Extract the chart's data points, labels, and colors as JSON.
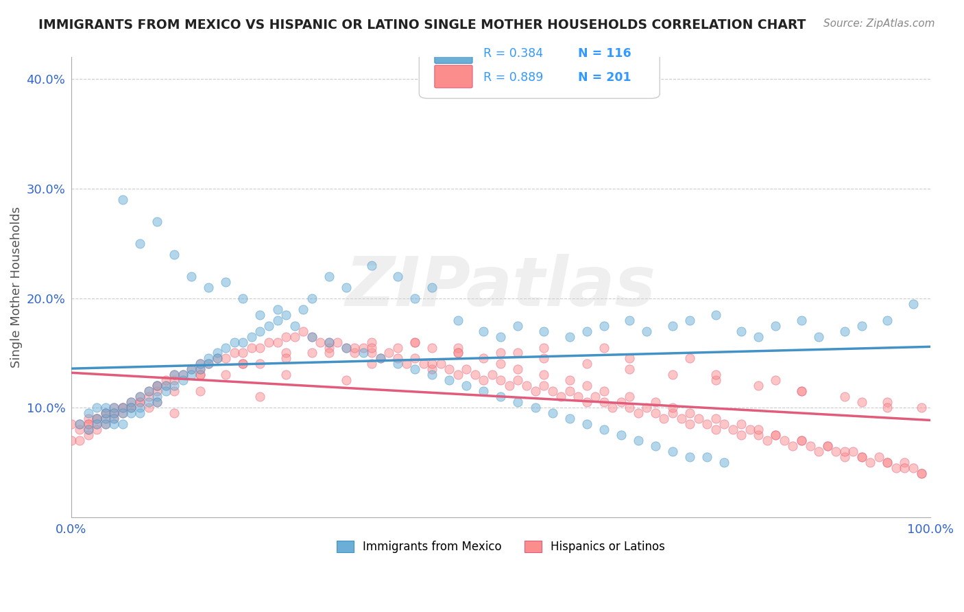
{
  "title": "IMMIGRANTS FROM MEXICO VS HISPANIC OR LATINO SINGLE MOTHER HOUSEHOLDS CORRELATION CHART",
  "source": "Source: ZipAtlas.com",
  "xlabel": "",
  "ylabel": "Single Mother Households",
  "xlim": [
    0.0,
    1.0
  ],
  "ylim": [
    0.0,
    0.42
  ],
  "xtick_labels": [
    "0.0%",
    "100.0%"
  ],
  "ytick_labels": [
    "10.0%",
    "20.0%",
    "30.0%",
    "40.0%"
  ],
  "ytick_values": [
    0.1,
    0.2,
    0.3,
    0.4
  ],
  "blue_R": 0.384,
  "blue_N": 116,
  "pink_R": 0.889,
  "pink_N": 201,
  "blue_color": "#6baed6",
  "pink_color": "#fc8d8d",
  "blue_line_color": "#4292c6",
  "pink_line_color": "#e05c7a",
  "legend_R_color": "#3399ff",
  "watermark": "ZIPatlas",
  "bg_color": "#ffffff",
  "grid_color": "#cccccc",
  "title_color": "#222222",
  "blue_scatter_x": [
    0.01,
    0.02,
    0.02,
    0.03,
    0.03,
    0.03,
    0.04,
    0.04,
    0.04,
    0.04,
    0.05,
    0.05,
    0.05,
    0.05,
    0.06,
    0.06,
    0.06,
    0.07,
    0.07,
    0.07,
    0.08,
    0.08,
    0.08,
    0.09,
    0.09,
    0.1,
    0.1,
    0.1,
    0.11,
    0.11,
    0.12,
    0.12,
    0.13,
    0.13,
    0.14,
    0.14,
    0.15,
    0.15,
    0.16,
    0.16,
    0.17,
    0.17,
    0.18,
    0.19,
    0.2,
    0.21,
    0.22,
    0.23,
    0.24,
    0.25,
    0.27,
    0.28,
    0.3,
    0.32,
    0.35,
    0.38,
    0.4,
    0.42,
    0.45,
    0.48,
    0.5,
    0.52,
    0.55,
    0.58,
    0.6,
    0.62,
    0.65,
    0.67,
    0.7,
    0.72,
    0.75,
    0.78,
    0.8,
    0.82,
    0.85,
    0.87,
    0.9,
    0.92,
    0.95,
    0.98,
    0.06,
    0.08,
    0.1,
    0.12,
    0.14,
    0.16,
    0.18,
    0.2,
    0.22,
    0.24,
    0.26,
    0.28,
    0.3,
    0.32,
    0.34,
    0.36,
    0.38,
    0.4,
    0.42,
    0.44,
    0.46,
    0.48,
    0.5,
    0.52,
    0.54,
    0.56,
    0.58,
    0.6,
    0.62,
    0.64,
    0.66,
    0.68,
    0.7,
    0.72,
    0.74,
    0.76
  ],
  "blue_scatter_y": [
    0.085,
    0.095,
    0.08,
    0.09,
    0.1,
    0.085,
    0.09,
    0.1,
    0.095,
    0.085,
    0.1,
    0.095,
    0.09,
    0.085,
    0.1,
    0.095,
    0.085,
    0.105,
    0.1,
    0.095,
    0.11,
    0.1,
    0.095,
    0.115,
    0.105,
    0.12,
    0.11,
    0.105,
    0.12,
    0.115,
    0.13,
    0.12,
    0.13,
    0.125,
    0.135,
    0.13,
    0.14,
    0.135,
    0.145,
    0.14,
    0.15,
    0.145,
    0.155,
    0.16,
    0.16,
    0.165,
    0.17,
    0.175,
    0.18,
    0.185,
    0.19,
    0.2,
    0.22,
    0.21,
    0.23,
    0.22,
    0.2,
    0.21,
    0.18,
    0.17,
    0.165,
    0.175,
    0.17,
    0.165,
    0.17,
    0.175,
    0.18,
    0.17,
    0.175,
    0.18,
    0.185,
    0.17,
    0.165,
    0.175,
    0.18,
    0.165,
    0.17,
    0.175,
    0.18,
    0.195,
    0.29,
    0.25,
    0.27,
    0.24,
    0.22,
    0.21,
    0.215,
    0.2,
    0.185,
    0.19,
    0.175,
    0.165,
    0.16,
    0.155,
    0.15,
    0.145,
    0.14,
    0.135,
    0.13,
    0.125,
    0.12,
    0.115,
    0.11,
    0.105,
    0.1,
    0.095,
    0.09,
    0.085,
    0.08,
    0.075,
    0.07,
    0.065,
    0.06,
    0.055,
    0.055,
    0.05
  ],
  "pink_scatter_x": [
    0.0,
    0.01,
    0.01,
    0.02,
    0.02,
    0.02,
    0.03,
    0.03,
    0.03,
    0.04,
    0.04,
    0.04,
    0.05,
    0.05,
    0.06,
    0.06,
    0.07,
    0.07,
    0.08,
    0.08,
    0.09,
    0.09,
    0.1,
    0.1,
    0.11,
    0.11,
    0.12,
    0.12,
    0.13,
    0.14,
    0.15,
    0.15,
    0.16,
    0.17,
    0.18,
    0.19,
    0.2,
    0.21,
    0.22,
    0.23,
    0.24,
    0.25,
    0.26,
    0.27,
    0.28,
    0.29,
    0.3,
    0.31,
    0.32,
    0.33,
    0.34,
    0.35,
    0.36,
    0.37,
    0.38,
    0.39,
    0.4,
    0.41,
    0.42,
    0.43,
    0.44,
    0.45,
    0.46,
    0.47,
    0.48,
    0.49,
    0.5,
    0.51,
    0.52,
    0.53,
    0.54,
    0.55,
    0.56,
    0.57,
    0.58,
    0.59,
    0.6,
    0.61,
    0.62,
    0.63,
    0.64,
    0.65,
    0.66,
    0.67,
    0.68,
    0.69,
    0.7,
    0.71,
    0.72,
    0.73,
    0.74,
    0.75,
    0.76,
    0.77,
    0.78,
    0.79,
    0.8,
    0.81,
    0.82,
    0.83,
    0.84,
    0.85,
    0.86,
    0.87,
    0.88,
    0.89,
    0.9,
    0.91,
    0.92,
    0.93,
    0.94,
    0.95,
    0.96,
    0.97,
    0.98,
    0.99,
    0.0,
    0.01,
    0.02,
    0.03,
    0.04,
    0.05,
    0.06,
    0.07,
    0.08,
    0.09,
    0.1,
    0.12,
    0.15,
    0.18,
    0.2,
    0.22,
    0.25,
    0.28,
    0.3,
    0.33,
    0.35,
    0.38,
    0.4,
    0.42,
    0.45,
    0.48,
    0.5,
    0.52,
    0.55,
    0.58,
    0.6,
    0.62,
    0.65,
    0.68,
    0.7,
    0.72,
    0.75,
    0.78,
    0.8,
    0.82,
    0.85,
    0.88,
    0.9,
    0.92,
    0.95,
    0.97,
    0.99,
    0.1,
    0.15,
    0.2,
    0.25,
    0.3,
    0.35,
    0.4,
    0.45,
    0.5,
    0.55,
    0.6,
    0.65,
    0.7,
    0.75,
    0.8,
    0.85,
    0.9,
    0.95,
    0.99,
    0.05,
    0.15,
    0.25,
    0.35,
    0.45,
    0.55,
    0.65,
    0.75,
    0.85,
    0.95,
    0.02,
    0.12,
    0.22,
    0.32,
    0.42,
    0.52,
    0.62,
    0.72,
    0.82,
    0.92
  ],
  "pink_scatter_y": [
    0.07,
    0.07,
    0.08,
    0.075,
    0.08,
    0.085,
    0.08,
    0.085,
    0.09,
    0.085,
    0.09,
    0.095,
    0.09,
    0.095,
    0.095,
    0.1,
    0.1,
    0.105,
    0.105,
    0.11,
    0.11,
    0.115,
    0.115,
    0.12,
    0.12,
    0.125,
    0.125,
    0.13,
    0.13,
    0.135,
    0.135,
    0.14,
    0.14,
    0.145,
    0.145,
    0.15,
    0.15,
    0.155,
    0.155,
    0.16,
    0.16,
    0.165,
    0.165,
    0.17,
    0.165,
    0.16,
    0.155,
    0.16,
    0.155,
    0.15,
    0.155,
    0.15,
    0.145,
    0.15,
    0.145,
    0.14,
    0.145,
    0.14,
    0.135,
    0.14,
    0.135,
    0.13,
    0.135,
    0.13,
    0.125,
    0.13,
    0.125,
    0.12,
    0.125,
    0.12,
    0.115,
    0.12,
    0.115,
    0.11,
    0.115,
    0.11,
    0.105,
    0.11,
    0.105,
    0.1,
    0.105,
    0.1,
    0.095,
    0.1,
    0.095,
    0.09,
    0.095,
    0.09,
    0.085,
    0.09,
    0.085,
    0.08,
    0.085,
    0.08,
    0.075,
    0.08,
    0.075,
    0.07,
    0.075,
    0.07,
    0.065,
    0.07,
    0.065,
    0.06,
    0.065,
    0.06,
    0.055,
    0.06,
    0.055,
    0.05,
    0.055,
    0.05,
    0.045,
    0.05,
    0.045,
    0.04,
    0.085,
    0.085,
    0.09,
    0.09,
    0.095,
    0.095,
    0.1,
    0.1,
    0.105,
    0.1,
    0.105,
    0.115,
    0.13,
    0.13,
    0.14,
    0.14,
    0.15,
    0.15,
    0.16,
    0.155,
    0.16,
    0.155,
    0.16,
    0.155,
    0.15,
    0.145,
    0.14,
    0.135,
    0.13,
    0.125,
    0.12,
    0.115,
    0.11,
    0.105,
    0.1,
    0.095,
    0.09,
    0.085,
    0.08,
    0.075,
    0.07,
    0.065,
    0.06,
    0.055,
    0.05,
    0.045,
    0.04,
    0.12,
    0.13,
    0.14,
    0.145,
    0.15,
    0.155,
    0.16,
    0.155,
    0.15,
    0.145,
    0.14,
    0.135,
    0.13,
    0.125,
    0.12,
    0.115,
    0.11,
    0.105,
    0.1,
    0.1,
    0.115,
    0.13,
    0.14,
    0.15,
    0.155,
    0.145,
    0.13,
    0.115,
    0.1,
    0.085,
    0.095,
    0.11,
    0.125,
    0.14,
    0.15,
    0.155,
    0.145,
    0.125,
    0.105
  ]
}
